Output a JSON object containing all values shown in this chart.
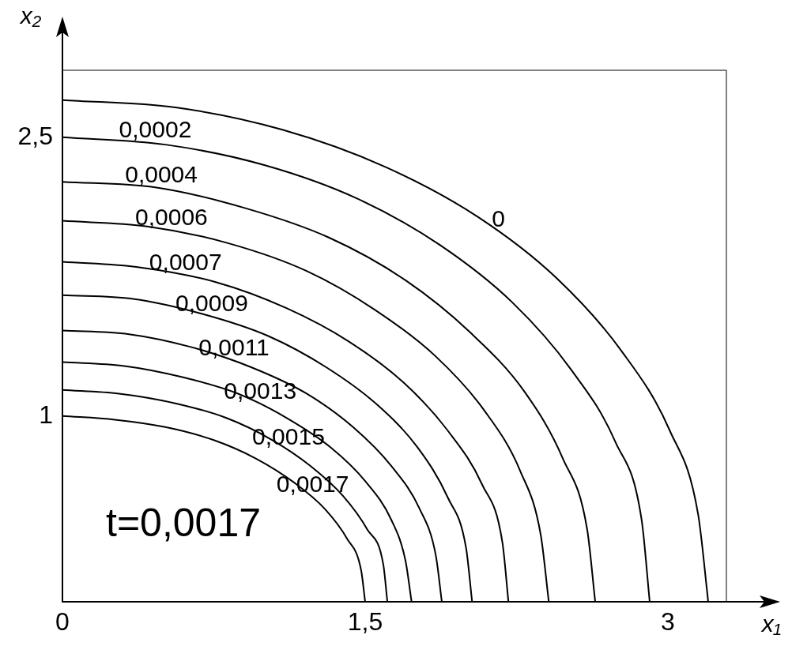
{
  "chart_data": {
    "type": "line",
    "xlabel": "x₁",
    "ylabel": "x₂",
    "annotations": [
      "t=0,0017"
    ],
    "xlim": [
      0,
      3.29
    ],
    "ylim": [
      0,
      2.86
    ],
    "xticks": [
      {
        "value": 0,
        "label": "0"
      },
      {
        "value": 1.5,
        "label": "1,5"
      },
      3
    ],
    "yticks": [
      1,
      {
        "value": 2.5,
        "label": "2,5"
      }
    ],
    "series": [
      {
        "name": "0",
        "color": "#000000",
        "x": [
          0,
          0.56,
          1.09,
          1.6,
          2.06,
          2.45,
          2.77,
          3.01,
          3.15,
          3.2
        ],
        "values": [
          2.7,
          2.66,
          2.54,
          2.34,
          2.07,
          1.74,
          1.35,
          0.92,
          0.47,
          0
        ]
      },
      {
        "name": "0,0002",
        "color": "#000000",
        "x": [
          0,
          0.51,
          1.0,
          1.46,
          1.87,
          2.23,
          2.52,
          2.74,
          2.87,
          2.91
        ],
        "values": [
          2.5,
          2.46,
          2.35,
          2.17,
          1.92,
          1.61,
          1.25,
          0.86,
          0.44,
          0
        ]
      },
      {
        "name": "0,0004",
        "color": "#000000",
        "x": [
          0,
          0.46,
          0.9,
          1.32,
          1.7,
          2.02,
          2.29,
          2.48,
          2.6,
          2.64
        ],
        "values": [
          2.26,
          2.23,
          2.12,
          1.96,
          1.73,
          1.45,
          1.13,
          0.77,
          0.39,
          0
        ]
      },
      {
        "name": "0,0006",
        "color": "#000000",
        "x": [
          0,
          0.42,
          0.82,
          1.21,
          1.55,
          1.85,
          2.09,
          2.27,
          2.37,
          2.41
        ],
        "values": [
          2.05,
          2.02,
          1.93,
          1.78,
          1.57,
          1.32,
          1.03,
          0.7,
          0.36,
          0
        ]
      },
      {
        "name": "0,0007",
        "color": "#000000",
        "x": [
          0,
          0.38,
          0.76,
          1.11,
          1.42,
          1.69,
          1.91,
          2.08,
          2.18,
          2.21
        ],
        "values": [
          1.83,
          1.8,
          1.72,
          1.58,
          1.4,
          1.18,
          0.92,
          0.63,
          0.32,
          0
        ]
      },
      {
        "name": "0,0009",
        "color": "#000000",
        "x": [
          0,
          0.35,
          0.69,
          1.02,
          1.31,
          1.56,
          1.76,
          1.91,
          2.0,
          2.03
        ],
        "values": [
          1.65,
          1.63,
          1.55,
          1.43,
          1.26,
          1.06,
          0.83,
          0.56,
          0.29,
          0
        ]
      },
      {
        "name": "0,0011",
        "color": "#000000",
        "x": [
          0,
          0.33,
          0.64,
          0.94,
          1.21,
          1.44,
          1.63,
          1.77,
          1.85,
          1.88
        ],
        "values": [
          1.46,
          1.44,
          1.37,
          1.26,
          1.12,
          0.94,
          0.73,
          0.5,
          0.25,
          0
        ]
      },
      {
        "name": "0,0013",
        "color": "#000000",
        "x": [
          0,
          0.3,
          0.59,
          0.87,
          1.11,
          1.33,
          1.5,
          1.63,
          1.7,
          1.73
        ],
        "values": [
          1.29,
          1.27,
          1.21,
          1.12,
          0.99,
          0.83,
          0.65,
          0.44,
          0.22,
          0
        ]
      },
      {
        "name": "0,0015",
        "color": "#000000",
        "x": [
          0,
          0.28,
          0.55,
          0.81,
          1.04,
          1.23,
          1.39,
          1.51,
          1.59,
          1.61
        ],
        "values": [
          1.14,
          1.12,
          1.07,
          0.99,
          0.87,
          0.73,
          0.57,
          0.39,
          0.2,
          0
        ]
      },
      {
        "name": "0,0017",
        "color": "#000000",
        "x": [
          0,
          0.26,
          0.51,
          0.75,
          0.96,
          1.15,
          1.3,
          1.41,
          1.48,
          1.5
        ],
        "values": [
          1,
          0.98,
          0.94,
          0.87,
          0.77,
          0.64,
          0.5,
          0.34,
          0.17,
          0
        ]
      }
    ]
  }
}
